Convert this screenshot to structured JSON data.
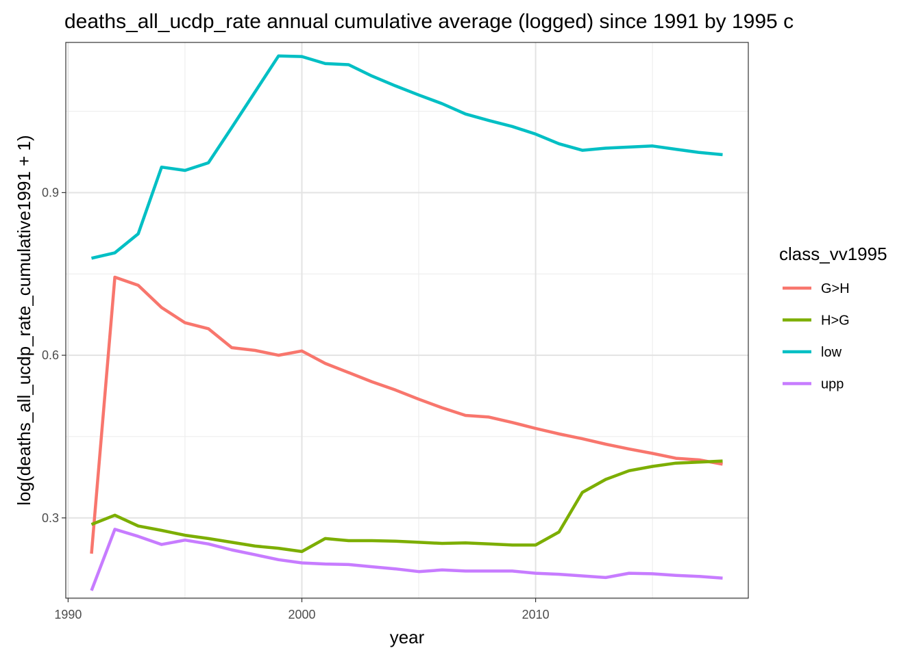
{
  "chart_data": {
    "type": "line",
    "title": "deaths_all_ucdp_rate annual cumulative average (logged) since 1991 by 1995 c",
    "xlabel": "year",
    "ylabel": "log(deaths_all_ucdp_rate_cumulative1991 + 1)",
    "xlim": [
      1989.9,
      2019.1
    ],
    "ylim": [
      0.152,
      1.177
    ],
    "x_ticks": [
      1990,
      2000,
      2010
    ],
    "x_tick_labels": [
      "1990",
      "2000",
      "2010"
    ],
    "x_minor_ticks": [
      1995,
      2005,
      2015
    ],
    "y_ticks": [
      0.3,
      0.6,
      0.9
    ],
    "y_tick_labels": [
      "0.3",
      "0.6",
      "0.9"
    ],
    "y_minor_ticks": [
      0.15,
      0.45,
      0.75,
      1.05
    ],
    "grid": true,
    "legend": {
      "title": "class_vv1995",
      "position": "right"
    },
    "x": [
      1991,
      1992,
      1993,
      1994,
      1995,
      1996,
      1997,
      1998,
      1999,
      2000,
      2001,
      2002,
      2003,
      2004,
      2005,
      2006,
      2007,
      2008,
      2009,
      2010,
      2011,
      2012,
      2013,
      2014,
      2015,
      2016,
      2017,
      2018
    ],
    "series": [
      {
        "name": "G>H",
        "color": "#F8766D",
        "values": [
          0.234,
          0.744,
          0.729,
          0.688,
          0.66,
          0.649,
          0.614,
          0.609,
          0.6,
          0.608,
          0.585,
          0.568,
          0.551,
          0.536,
          0.519,
          0.503,
          0.489,
          0.486,
          0.476,
          0.465,
          0.455,
          0.446,
          0.436,
          0.427,
          0.419,
          0.41,
          0.407,
          0.399
        ]
      },
      {
        "name": "H>G",
        "color": "#7CAE00",
        "values": [
          0.288,
          0.305,
          0.285,
          0.277,
          0.268,
          0.262,
          0.255,
          0.248,
          0.244,
          0.238,
          0.262,
          0.258,
          0.258,
          0.257,
          0.255,
          0.253,
          0.254,
          0.252,
          0.25,
          0.25,
          0.274,
          0.347,
          0.371,
          0.387,
          0.395,
          0.401,
          0.403,
          0.405
        ]
      },
      {
        "name": "low",
        "color": "#00BFC4",
        "values": [
          0.779,
          0.789,
          0.824,
          0.947,
          0.941,
          0.955,
          1.02,
          1.086,
          1.152,
          1.151,
          1.138,
          1.136,
          1.115,
          1.097,
          1.08,
          1.064,
          1.045,
          1.033,
          1.022,
          1.008,
          0.99,
          0.978,
          0.982,
          0.984,
          0.986,
          0.98,
          0.974,
          0.97
        ]
      },
      {
        "name": "upp",
        "color": "#C77CFF",
        "values": [
          0.166,
          0.279,
          0.266,
          0.251,
          0.259,
          0.252,
          0.241,
          0.232,
          0.223,
          0.217,
          0.215,
          0.214,
          0.21,
          0.206,
          0.201,
          0.204,
          0.202,
          0.202,
          0.202,
          0.198,
          0.196,
          0.193,
          0.19,
          0.198,
          0.197,
          0.194,
          0.192,
          0.189
        ]
      }
    ]
  }
}
